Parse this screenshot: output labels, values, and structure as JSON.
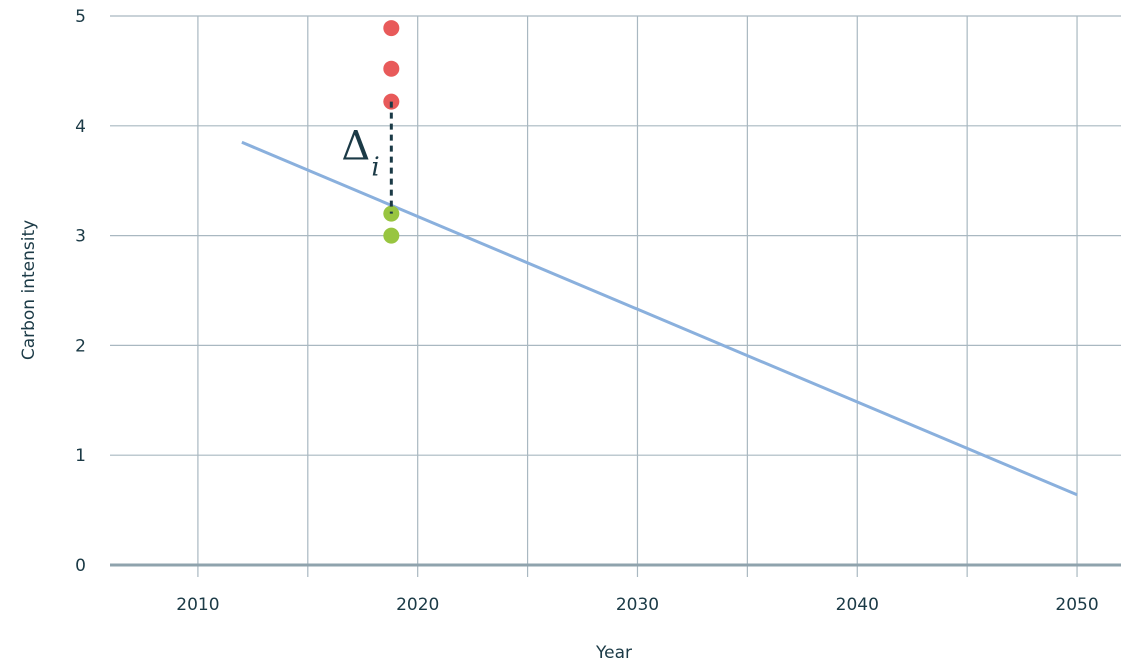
{
  "chart_data": {
    "type": "scatter",
    "title": "",
    "xlabel": "Year",
    "ylabel": "Carbon intensity",
    "xlim": [
      2006,
      2052
    ],
    "ylim": [
      0,
      5
    ],
    "x_ticks": [
      2010,
      2020,
      2030,
      2040,
      2050
    ],
    "x_tick_labels": [
      "2010",
      "2020",
      "2030",
      "2040",
      "2050"
    ],
    "x_grid": [
      2010,
      2015,
      2020,
      2025,
      2030,
      2035,
      2040,
      2045,
      2050
    ],
    "y_ticks": [
      0,
      1,
      2,
      3,
      4,
      5
    ],
    "y_tick_labels": [
      "0",
      "1",
      "2",
      "3",
      "4",
      "5"
    ],
    "grid": true,
    "colors": {
      "grid": "#a9b8c1",
      "baseline": "#8fa3ad",
      "line": "#8ab0dd",
      "above": "#e85a5a",
      "below": "#98c540",
      "delta": "#1b3a46",
      "text": "#1b3a46"
    },
    "series": [
      {
        "kind": "line",
        "x": [
          2012,
          2050
        ],
        "y": [
          3.85,
          0.64
        ]
      },
      {
        "kind": "scatter",
        "color_key": "above",
        "x": [
          2018.8,
          2018.8,
          2018.8
        ],
        "y": [
          4.89,
          4.52,
          4.22
        ]
      },
      {
        "kind": "scatter",
        "color_key": "below",
        "x": [
          2018.8,
          2018.8
        ],
        "y": [
          3.2,
          3.0
        ]
      }
    ],
    "annotations": [
      {
        "type": "delta",
        "x": 2018.8,
        "y_from": 4.22,
        "y_to": 3.2,
        "label": "Δ",
        "subscript": "i"
      }
    ]
  }
}
